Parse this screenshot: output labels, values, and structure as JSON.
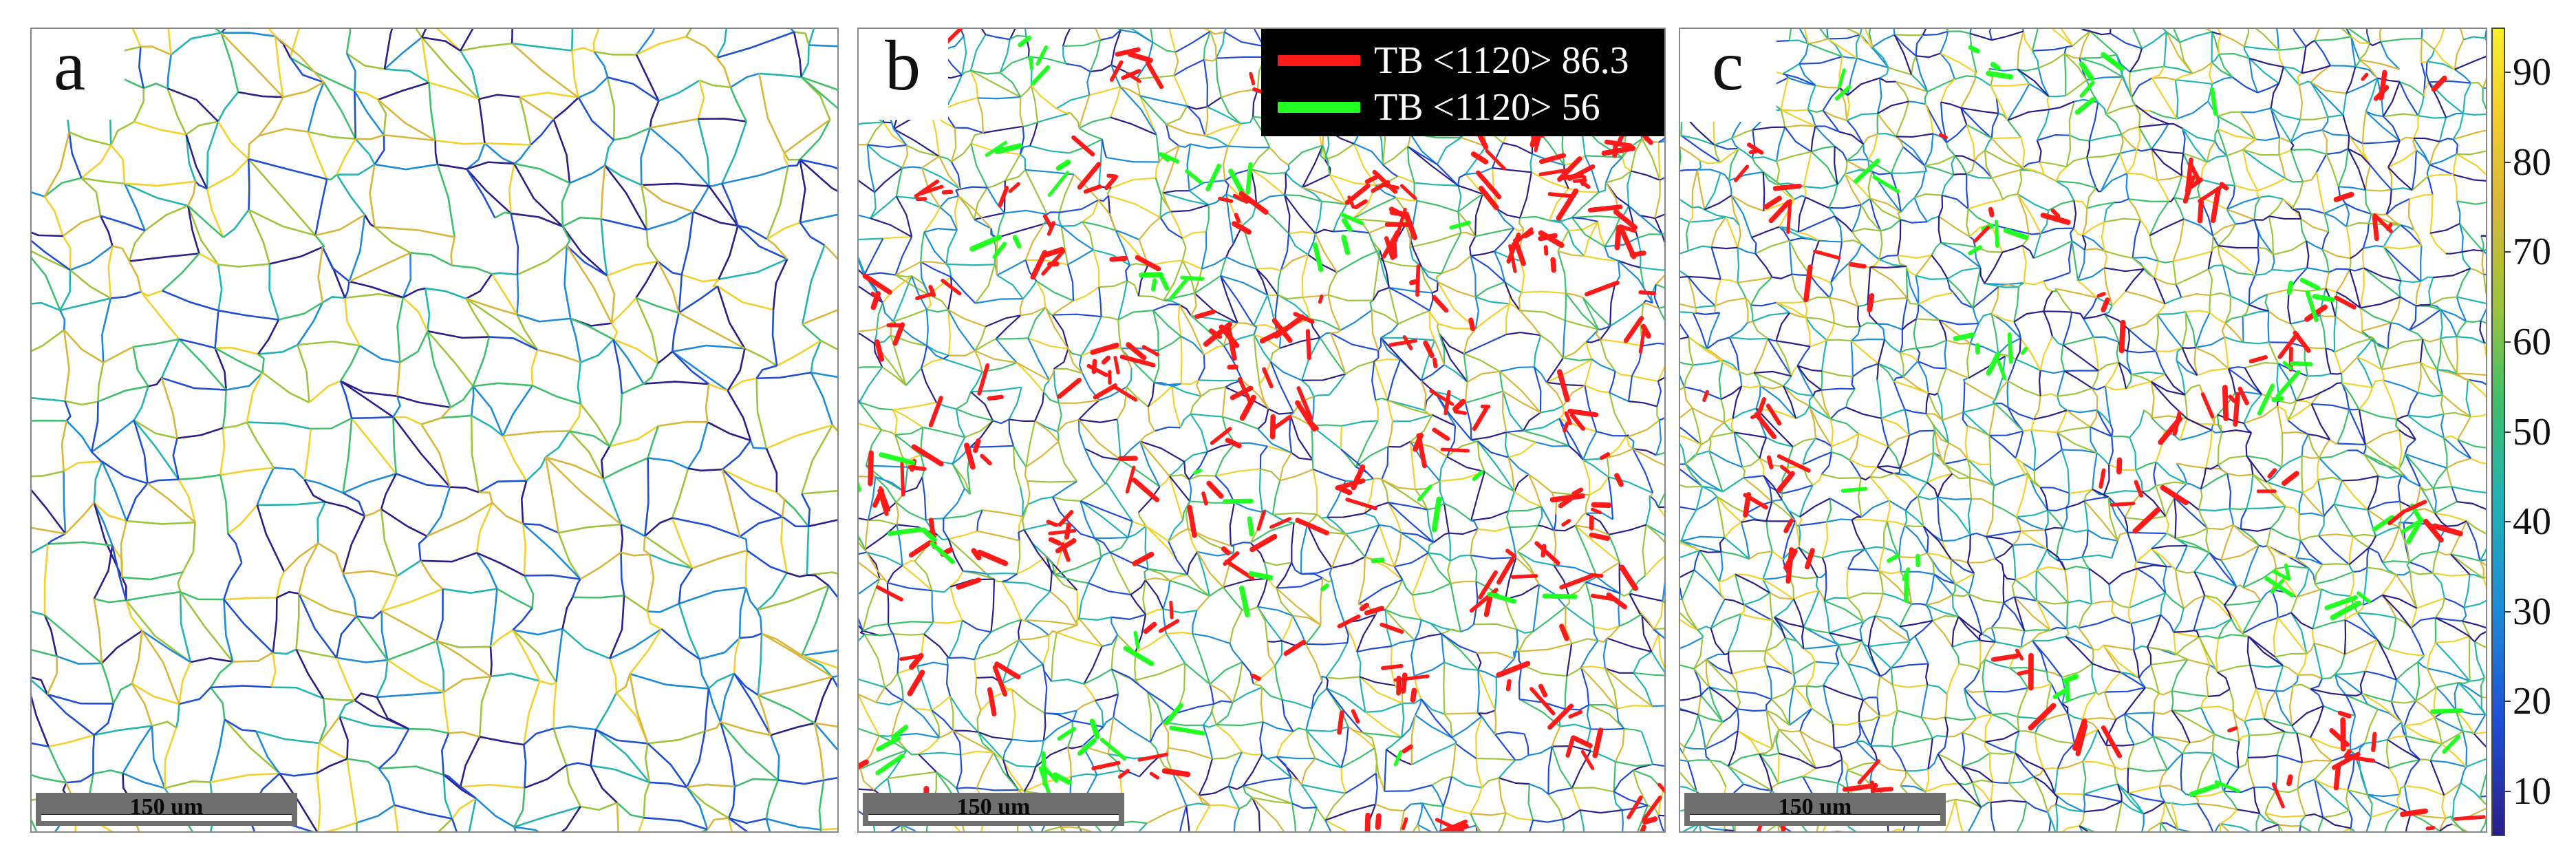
{
  "panels": [
    {
      "id": "a",
      "label": "a",
      "scale_text": "150 um",
      "twins": false
    },
    {
      "id": "b",
      "label": "b",
      "scale_text": "150 um",
      "twins": true
    },
    {
      "id": "c",
      "label": "c",
      "scale_text": "150 um",
      "twins": true
    }
  ],
  "legend": {
    "items": [
      {
        "label": "TB <1120> 86.3",
        "color": "#ff1a1a"
      },
      {
        "label": "TB <1120> 56",
        "color": "#22ff22"
      }
    ]
  },
  "colorbar": {
    "ticks": [
      "10",
      "20",
      "30",
      "40",
      "50",
      "60",
      "70",
      "80",
      "90"
    ],
    "min": 5,
    "max": 95
  },
  "colors": {
    "boundary_palette": [
      "#2a1f8a",
      "#1f4ed6",
      "#1d8bd8",
      "#22b3b3",
      "#3fbf6a",
      "#9fc43c",
      "#d9b53a",
      "#f5cf2a"
    ]
  }
}
